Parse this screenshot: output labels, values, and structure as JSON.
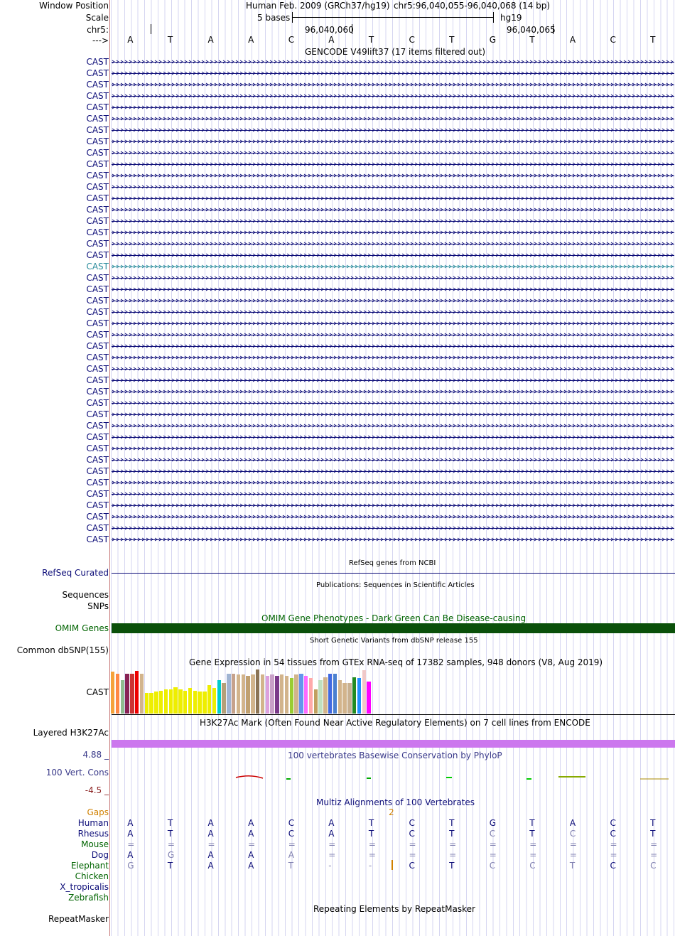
{
  "header": {
    "window_position_label": "Window Position",
    "scale_label": "Scale",
    "chrom_label": "chr5:",
    "strand_label": "--->",
    "assembly": "Human Feb. 2009 (GRCh37/hg19)",
    "position": "chr5:96,040,055-96,040,068 (14 bp)",
    "scale_text": "5 bases",
    "db": "hg19",
    "tick1": "96,040,060",
    "tick2": "96,040,065"
  },
  "bases": [
    "A",
    "T",
    "A",
    "A",
    "C",
    "A",
    "T",
    "C",
    "T",
    "G",
    "T",
    "A",
    "C",
    "T"
  ],
  "gencode": {
    "title": "GENCODE V49lift37 (17 items filtered out)",
    "rows": [
      {
        "label": "CAST",
        "color": "#0c0c78"
      },
      {
        "label": "CAST",
        "color": "#0c0c78"
      },
      {
        "label": "CAST",
        "color": "#0c0c78"
      },
      {
        "label": "CAST",
        "color": "#0c0c78"
      },
      {
        "label": "CAST",
        "color": "#0c0c78"
      },
      {
        "label": "CAST",
        "color": "#0c0c78"
      },
      {
        "label": "CAST",
        "color": "#0c0c78"
      },
      {
        "label": "CAST",
        "color": "#0c0c78"
      },
      {
        "label": "CAST",
        "color": "#0c0c78"
      },
      {
        "label": "CAST",
        "color": "#0c0c78"
      },
      {
        "label": "CAST",
        "color": "#0c0c78"
      },
      {
        "label": "CAST",
        "color": "#0c0c78"
      },
      {
        "label": "CAST",
        "color": "#0c0c78"
      },
      {
        "label": "CAST",
        "color": "#0c0c78"
      },
      {
        "label": "CAST",
        "color": "#0c0c78"
      },
      {
        "label": "CAST",
        "color": "#0c0c78"
      },
      {
        "label": "CAST",
        "color": "#0c0c78"
      },
      {
        "label": "CAST",
        "color": "#0c0c78"
      },
      {
        "label": "CAST",
        "color": "#2a8c9c"
      },
      {
        "label": "CAST",
        "color": "#0c0c78"
      },
      {
        "label": "CAST",
        "color": "#0c0c78"
      },
      {
        "label": "CAST",
        "color": "#0c0c78"
      },
      {
        "label": "CAST",
        "color": "#0c0c78"
      },
      {
        "label": "CAST",
        "color": "#0c0c78"
      },
      {
        "label": "CAST",
        "color": "#0c0c78"
      },
      {
        "label": "CAST",
        "color": "#0c0c78"
      },
      {
        "label": "CAST",
        "color": "#0c0c78"
      },
      {
        "label": "CAST",
        "color": "#0c0c78"
      },
      {
        "label": "CAST",
        "color": "#0c0c78"
      },
      {
        "label": "CAST",
        "color": "#0c0c78"
      },
      {
        "label": "CAST",
        "color": "#0c0c78"
      },
      {
        "label": "CAST",
        "color": "#0c0c78"
      },
      {
        "label": "CAST",
        "color": "#0c0c78"
      },
      {
        "label": "CAST",
        "color": "#0c0c78"
      },
      {
        "label": "CAST",
        "color": "#0c0c78"
      },
      {
        "label": "CAST",
        "color": "#0c0c78"
      },
      {
        "label": "CAST",
        "color": "#0c0c78"
      },
      {
        "label": "CAST",
        "color": "#0c0c78"
      },
      {
        "label": "CAST",
        "color": "#0c0c78"
      },
      {
        "label": "CAST",
        "color": "#0c0c78"
      },
      {
        "label": "CAST",
        "color": "#0c0c78"
      },
      {
        "label": "CAST",
        "color": "#0c0c78"
      },
      {
        "label": "CAST",
        "color": "#0c0c78"
      }
    ]
  },
  "refseq": {
    "title": "RefSeq genes from NCBI",
    "label": "RefSeq Curated"
  },
  "publications": {
    "title": "Publications: Sequences in Scientific Articles",
    "label1": "Sequences",
    "label2": "SNPs"
  },
  "omim": {
    "title": "OMIM Gene Phenotypes - Dark Green Can Be Disease-causing",
    "label": "OMIM Genes",
    "color": "#0a500a"
  },
  "dbsnp": {
    "title": "Short Genetic Variants from dbSNP release 155",
    "label": "Common dbSNP(155)"
  },
  "gtex": {
    "title": "Gene Expression in 54 tissues from GTEx RNA-seq of 17382 samples, 948 donors (V8, Aug 2019)",
    "label": "CAST",
    "bars": [
      {
        "v": 0.95,
        "c": "#f5a23a"
      },
      {
        "v": 0.9,
        "c": "#ff8844"
      },
      {
        "v": 0.75,
        "c": "#8fbc8f"
      },
      {
        "v": 0.9,
        "c": "#882255"
      },
      {
        "v": 0.9,
        "c": "#cc3333"
      },
      {
        "v": 0.97,
        "c": "#ee0000"
      },
      {
        "v": 0.9,
        "c": "#d2b48c"
      },
      {
        "v": 0.47,
        "c": "#eeee00"
      },
      {
        "v": 0.47,
        "c": "#eeee00"
      },
      {
        "v": 0.5,
        "c": "#eeee00"
      },
      {
        "v": 0.52,
        "c": "#eeee00"
      },
      {
        "v": 0.55,
        "c": "#eeee00"
      },
      {
        "v": 0.55,
        "c": "#eeee00"
      },
      {
        "v": 0.6,
        "c": "#eeee00"
      },
      {
        "v": 0.55,
        "c": "#eeee00"
      },
      {
        "v": 0.52,
        "c": "#eeee00"
      },
      {
        "v": 0.58,
        "c": "#eeee00"
      },
      {
        "v": 0.52,
        "c": "#eeee00"
      },
      {
        "v": 0.5,
        "c": "#eeee00"
      },
      {
        "v": 0.5,
        "c": "#eeee00"
      },
      {
        "v": 0.65,
        "c": "#eeee00"
      },
      {
        "v": 0.58,
        "c": "#eeee00"
      },
      {
        "v": 0.75,
        "c": "#00cdcd"
      },
      {
        "v": 0.7,
        "c": "#b4a078"
      },
      {
        "v": 0.9,
        "c": "#a0b4d2"
      },
      {
        "v": 0.9,
        "c": "#c6a28c"
      },
      {
        "v": 0.88,
        "c": "#d2b48c"
      },
      {
        "v": 0.88,
        "c": "#d2b48c"
      },
      {
        "v": 0.85,
        "c": "#c0a070"
      },
      {
        "v": 0.88,
        "c": "#d2b48c"
      },
      {
        "v": 1.0,
        "c": "#8b7355"
      },
      {
        "v": 0.88,
        "c": "#d2b48c"
      },
      {
        "v": 0.85,
        "c": "#dda0dd"
      },
      {
        "v": 0.88,
        "c": "#c8a0c8"
      },
      {
        "v": 0.85,
        "c": "#7a3a8a"
      },
      {
        "v": 0.88,
        "c": "#d2b48c"
      },
      {
        "v": 0.85,
        "c": "#d2b48c"
      },
      {
        "v": 0.8,
        "c": "#9acd32"
      },
      {
        "v": 0.88,
        "c": "#d2b48c"
      },
      {
        "v": 0.9,
        "c": "#6495ed"
      },
      {
        "v": 0.85,
        "c": "#ff6aff"
      },
      {
        "v": 0.8,
        "c": "#ffaaaa"
      },
      {
        "v": 0.55,
        "c": "#c0a060"
      },
      {
        "v": 0.75,
        "c": "#c0e0c0"
      },
      {
        "v": 0.82,
        "c": "#d2b48c"
      },
      {
        "v": 0.9,
        "c": "#4169e1"
      },
      {
        "v": 0.9,
        "c": "#4a7fd0"
      },
      {
        "v": 0.75,
        "c": "#d2b48c"
      },
      {
        "v": 0.7,
        "c": "#d2b48c"
      },
      {
        "v": 0.7,
        "c": "#c8b090"
      },
      {
        "v": 0.82,
        "c": "#228b22"
      },
      {
        "v": 0.8,
        "c": "#1e90ff"
      },
      {
        "v": 0.98,
        "c": "#f0c8c8"
      },
      {
        "v": 0.72,
        "c": "#ff00ff"
      }
    ]
  },
  "h3k27ac": {
    "title": "H3K27Ac Mark (Often Found Near Active Regulatory Elements) on 7 cell lines from ENCODE",
    "label": "Layered H3K27Ac",
    "color": "#cc77ee"
  },
  "phylop": {
    "title": "100 vertebrates Basewise Conservation by PhyloP",
    "label": "100 Vert. Cons",
    "max": "4.88 _",
    "min": "-4.5 _"
  },
  "multiz": {
    "title": "Multiz Alignments of 100 Vertebrates",
    "gaps_label": "Gaps",
    "gap_count": "2",
    "species": [
      {
        "name": "Human",
        "color": "#0c0c78",
        "row": [
          "A",
          "T",
          "A",
          "A",
          "C",
          "A",
          "T",
          "C",
          "T",
          "G",
          "T",
          "A",
          "C",
          "T"
        ],
        "dim": [
          0,
          0,
          0,
          0,
          0,
          0,
          0,
          0,
          0,
          0,
          0,
          0,
          0,
          0
        ]
      },
      {
        "name": "Rhesus",
        "color": "#0c0c78",
        "row": [
          "A",
          "T",
          "A",
          "A",
          "C",
          "A",
          "T",
          "C",
          "T",
          "C",
          "T",
          "C",
          "C",
          "T"
        ],
        "dim": [
          0,
          0,
          0,
          0,
          0,
          0,
          0,
          0,
          0,
          1,
          0,
          1,
          0,
          0
        ]
      },
      {
        "name": "Mouse",
        "color": "#006400",
        "row": [
          "=",
          "=",
          "=",
          "=",
          "=",
          "=",
          "=",
          "=",
          "=",
          "=",
          "=",
          "=",
          "=",
          "="
        ],
        "dim": [
          1,
          1,
          1,
          1,
          1,
          1,
          1,
          1,
          1,
          1,
          1,
          1,
          1,
          1
        ]
      },
      {
        "name": "Dog",
        "color": "#0c0c78",
        "row": [
          "A",
          "G",
          "A",
          "A",
          "A",
          "=",
          "=",
          "=",
          "=",
          "=",
          "=",
          "=",
          "=",
          "="
        ],
        "dim": [
          0,
          1,
          0,
          0,
          1,
          1,
          1,
          1,
          1,
          1,
          1,
          1,
          1,
          1
        ]
      },
      {
        "name": "Elephant",
        "color": "#006400",
        "row": [
          "G",
          "T",
          "A",
          "A",
          "T",
          "-",
          "-",
          "C",
          "T",
          "C",
          "C",
          "T",
          "C",
          "C"
        ],
        "dim": [
          1,
          0,
          0,
          0,
          1,
          1,
          1,
          0,
          0,
          1,
          1,
          1,
          0,
          1
        ]
      },
      {
        "name": "Chicken",
        "color": "#006400",
        "row": [],
        "dim": []
      },
      {
        "name": "X_tropicalis",
        "color": "#0c0c78",
        "row": [],
        "dim": []
      },
      {
        "name": "Zebrafish",
        "color": "#006400",
        "row": [],
        "dim": []
      }
    ]
  },
  "repeatmasker": {
    "title": "Repeating Elements by RepeatMasker",
    "label": "RepeatMasker"
  }
}
